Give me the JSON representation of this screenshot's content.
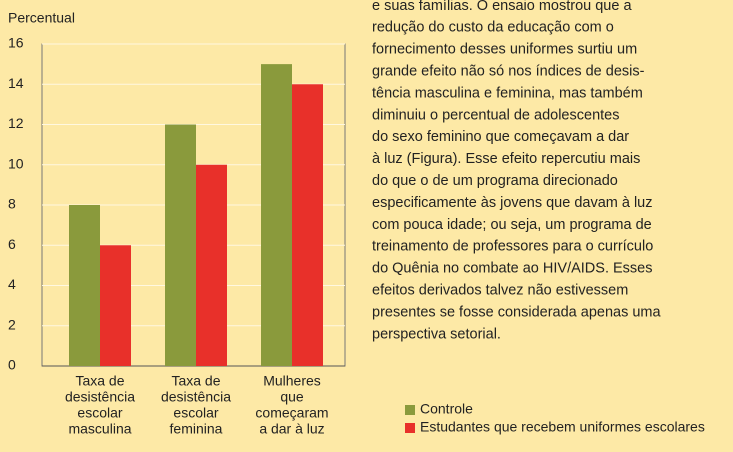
{
  "chart_data": {
    "type": "bar",
    "y_label": "Percentual",
    "categories": [
      [
        "Taxa de",
        "desistência",
        "escolar",
        "masculina"
      ],
      [
        "Taxa de",
        "desistência",
        "escolar",
        "feminina"
      ],
      [
        "Mulheres",
        "que",
        "começaram",
        "a dar à luz"
      ]
    ],
    "series": [
      {
        "name": "Controle",
        "color": "#8a9a3c",
        "values": [
          8,
          12,
          15
        ]
      },
      {
        "name": "Estudantes que recebem uniformes escolares",
        "color": "#e8302a",
        "values": [
          6,
          10,
          14
        ]
      }
    ],
    "ylim": [
      0,
      16
    ],
    "yticks": [
      0,
      2,
      4,
      6,
      8,
      10,
      12,
      14,
      16
    ],
    "grid": true,
    "legend": "bottom-right"
  },
  "body_text": [
    "e suas famílias. O ensaio mostrou que a",
    "redução do custo da educação com o",
    "fornecimento desses uniformes surtiu um",
    "grande efeito não só nos índices de desis-",
    "tência masculina e feminina, mas também",
    "diminuiu o percentual de adolescentes",
    "do sexo feminino que começavam a dar",
    "à luz (Figura). Esse efeito repercutiu mais",
    "do que o de um programa direcionado",
    "especificamente às jovens que davam à luz",
    "com pouca idade; ou seja, um programa de",
    "treinamento de professores para o currículo",
    "do Quênia no combate ao HIV/AIDS. Esses",
    "efeitos derivados talvez não estivessem",
    "presentes se fosse considerada apenas uma",
    "perspectiva setorial."
  ]
}
